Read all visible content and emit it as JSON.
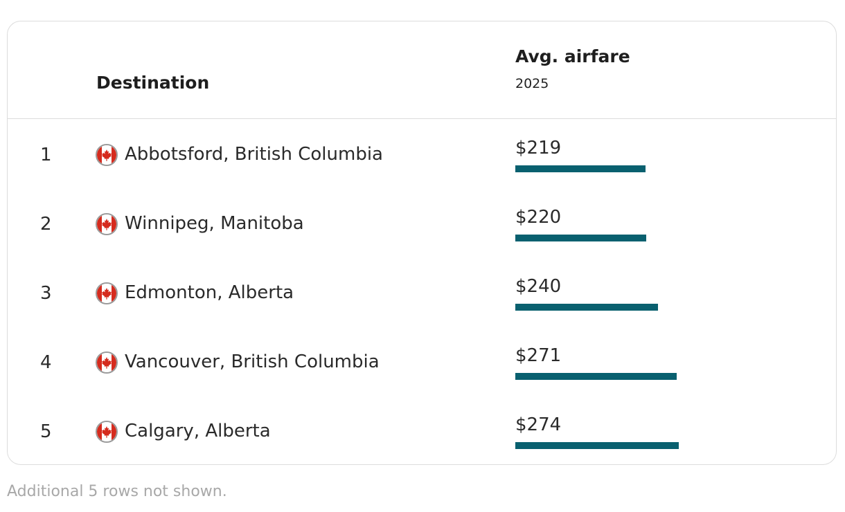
{
  "header": {
    "destination_label": "Destination",
    "fare_label": "Avg. airfare",
    "fare_sub": "2025"
  },
  "chart_data": {
    "type": "bar",
    "orientation": "horizontal",
    "categories": [
      "Abbotsford, British Columbia",
      "Winnipeg, Manitoba",
      "Edmonton, Alberta",
      "Vancouver, British Columbia",
      "Calgary, Alberta"
    ],
    "values": [
      219,
      220,
      240,
      271,
      274
    ],
    "value_labels": [
      "$219",
      "$220",
      "$240",
      "$271",
      "$274"
    ],
    "ranks": [
      "1",
      "2",
      "3",
      "4",
      "5"
    ],
    "bar_color": "#09606f",
    "title": "",
    "xlabel": "",
    "ylabel": ""
  },
  "flag_icon": "canada-flag-icon",
  "footnote": "Additional 5 rows not shown."
}
